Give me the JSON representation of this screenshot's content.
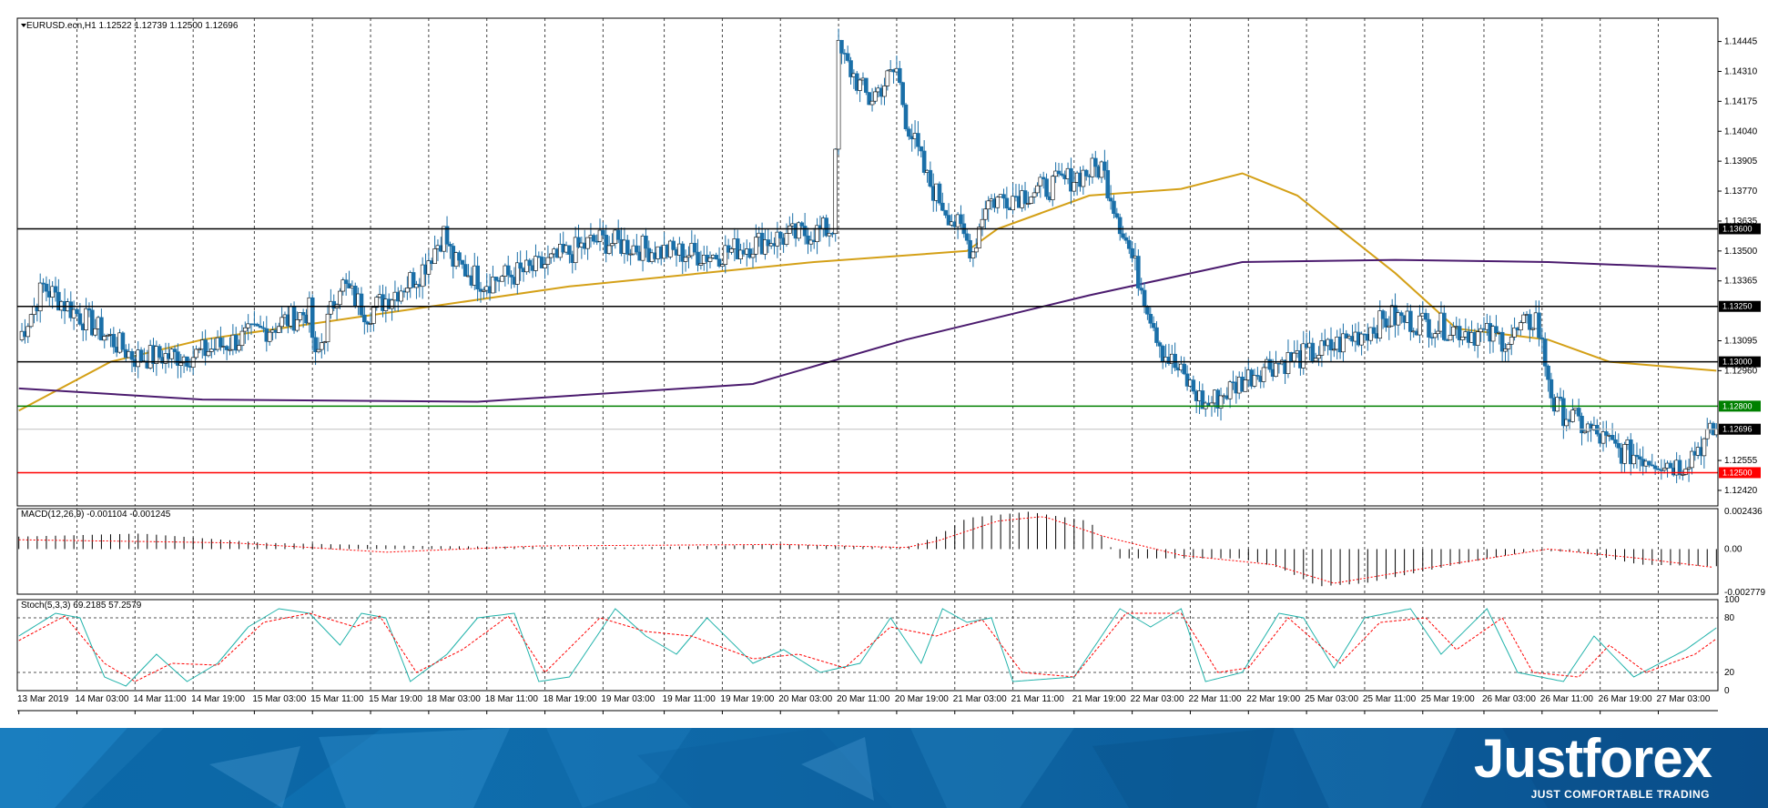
{
  "header": {
    "symbol_line": "EURUSD.ecn,H1  1.12522 1.12739 1.12500 1.12696"
  },
  "chart_data": [
    {
      "type": "candlestick",
      "title": "EURUSD.ecn,H1  1.12522 1.12739 1.12500 1.12696",
      "timeframe": "H1",
      "ylim": [
        1.1235,
        1.1455
      ],
      "y_ticks": [
        "1.14445",
        "1.14310",
        "1.14175",
        "1.14040",
        "1.13905",
        "1.13770",
        "1.13635",
        "1.13500",
        "1.13365",
        "1.13095",
        "1.12960",
        "1.12555",
        "1.12420"
      ],
      "x_tick_labels": [
        "13 Mar 2019",
        "14 Mar 03:00",
        "14 Mar 11:00",
        "14 Mar 19:00",
        "15 Mar 03:00",
        "15 Mar 11:00",
        "15 Mar 19:00",
        "18 Mar 03:00",
        "18 Mar 11:00",
        "18 Mar 19:00",
        "19 Mar 03:00",
        "19 Mar 11:00",
        "19 Mar 19:00",
        "20 Mar 03:00",
        "20 Mar 11:00",
        "20 Mar 19:00",
        "21 Mar 03:00",
        "21 Mar 11:00",
        "21 Mar 19:00",
        "22 Mar 03:00",
        "22 Mar 11:00",
        "22 Mar 19:00",
        "25 Mar 03:00",
        "25 Mar 11:00",
        "25 Mar 19:00",
        "26 Mar 03:00",
        "26 Mar 11:00",
        "26 Mar 19:00",
        "27 Mar 03:00"
      ],
      "key_points": [
        {
          "t": "13 Mar 2019",
          "close": 1.131
        },
        {
          "t": "13 Mar 21:00",
          "close": 1.1334
        },
        {
          "t": "14 Mar 03:00",
          "close": 1.1325
        },
        {
          "t": "14 Mar 11:00",
          "close": 1.1302
        },
        {
          "t": "14 Mar 19:00",
          "close": 1.1303
        },
        {
          "t": "15 Mar 03:00",
          "close": 1.1312
        },
        {
          "t": "15 Mar 11:00",
          "close": 1.1323
        },
        {
          "t": "15 Mar 13:00",
          "close": 1.13
        },
        {
          "t": "15 Mar 16:00",
          "close": 1.1336
        },
        {
          "t": "15 Mar 19:00",
          "close": 1.1322
        },
        {
          "t": "18 Mar 03:00",
          "close": 1.134
        },
        {
          "t": "18 Mar 09:00",
          "close": 1.1358
        },
        {
          "t": "18 Mar 11:00",
          "close": 1.1345
        },
        {
          "t": "18 Mar 19:00",
          "close": 1.1336
        },
        {
          "t": "19 Mar 03:00",
          "close": 1.1342
        },
        {
          "t": "19 Mar 11:00",
          "close": 1.1355
        },
        {
          "t": "19 Mar 19:00",
          "close": 1.135
        },
        {
          "t": "20 Mar 03:00",
          "close": 1.1348
        },
        {
          "t": "20 Mar 11:00",
          "close": 1.1355
        },
        {
          "t": "20 Mar 18:00",
          "close": 1.136
        },
        {
          "t": "20 Mar 19:00",
          "close": 1.144
        },
        {
          "t": "20 Mar 21:00",
          "close": 1.1418
        },
        {
          "t": "21 Mar 03:00",
          "close": 1.1432
        },
        {
          "t": "21 Mar 07:00",
          "close": 1.141
        },
        {
          "t": "21 Mar 11:00",
          "close": 1.1382
        },
        {
          "t": "21 Mar 14:00",
          "close": 1.135
        },
        {
          "t": "21 Mar 19:00",
          "close": 1.1372
        },
        {
          "t": "22 Mar 03:00",
          "close": 1.1378
        },
        {
          "t": "22 Mar 05:00",
          "close": 1.1388
        },
        {
          "t": "22 Mar 06:00",
          "close": 1.1305
        },
        {
          "t": "22 Mar 11:00",
          "close": 1.128
        },
        {
          "t": "22 Mar 19:00",
          "close": 1.1298
        },
        {
          "t": "25 Mar 03:00",
          "close": 1.1305
        },
        {
          "t": "25 Mar 11:00",
          "close": 1.132
        },
        {
          "t": "25 Mar 19:00",
          "close": 1.1315
        },
        {
          "t": "26 Mar 03:00",
          "close": 1.131
        },
        {
          "t": "26 Mar 08:00",
          "close": 1.132
        },
        {
          "t": "26 Mar 11:00",
          "close": 1.128
        },
        {
          "t": "26 Mar 19:00",
          "close": 1.126
        },
        {
          "t": "27 Mar 03:00",
          "close": 1.1253
        },
        {
          "t": "27 Mar 06:00",
          "close": 1.12696
        }
      ],
      "horizontal_levels": [
        {
          "price": 1.136,
          "label": "1.13600",
          "color": "#000000"
        },
        {
          "price": 1.1325,
          "label": "1.13250",
          "color": "#000000"
        },
        {
          "price": 1.13,
          "label": "1.13000",
          "color": "#000000"
        },
        {
          "price": 1.128,
          "label": "1.12800",
          "color": "#008000"
        },
        {
          "price": 1.125,
          "label": "1.12500",
          "color": "#ff0000"
        }
      ],
      "current_price": {
        "price": 1.12696,
        "label": "1.12696"
      },
      "moving_averages": [
        {
          "color": "#d4a017",
          "points": [
            [
              0,
              1.1278
            ],
            [
              30,
              1.13
            ],
            [
              60,
              1.131
            ],
            [
              120,
              1.1322
            ],
            [
              180,
              1.1334
            ],
            [
              260,
              1.1345
            ],
            [
              310,
              1.135
            ],
            [
              320,
              1.136
            ],
            [
              350,
              1.1375
            ],
            [
              380,
              1.1378
            ],
            [
              400,
              1.1385
            ],
            [
              418,
              1.1375
            ],
            [
              450,
              1.134
            ],
            [
              470,
              1.1315
            ],
            [
              500,
              1.131
            ],
            [
              520,
              1.13
            ],
            [
              555,
              1.1296
            ]
          ]
        },
        {
          "color": "#4b1b6e",
          "points": [
            [
              0,
              1.1288
            ],
            [
              60,
              1.1283
            ],
            [
              150,
              1.1282
            ],
            [
              240,
              1.129
            ],
            [
              290,
              1.131
            ],
            [
              350,
              1.133
            ],
            [
              400,
              1.1345
            ],
            [
              450,
              1.1346
            ],
            [
              500,
              1.1345
            ],
            [
              555,
              1.1342
            ]
          ]
        }
      ],
      "colors": {
        "bull": "#ffffff",
        "bear": "#1a6fa8",
        "wick": "#1a6fa8"
      }
    },
    {
      "type": "bar",
      "title": "MACD(12,26,9) -0.001104 -0.001245",
      "ylim": [
        -0.0029,
        0.0026
      ],
      "y_ticks": [
        "0.002436",
        "0.00",
        "-0.002779"
      ],
      "histogram_keypoints": [
        [
          0,
          0.0008
        ],
        [
          40,
          0.001
        ],
        [
          80,
          0.0004
        ],
        [
          130,
          0.0002
        ],
        [
          200,
          0.0001
        ],
        [
          250,
          0.0003
        ],
        [
          290,
          0.0001
        ],
        [
          300,
          0.0008
        ],
        [
          310,
          0.002
        ],
        [
          330,
          0.0024
        ],
        [
          350,
          0.0018
        ],
        [
          360,
          -0.0006
        ],
        [
          400,
          -0.0006
        ],
        [
          412,
          -0.0012
        ],
        [
          425,
          -0.0024
        ],
        [
          440,
          -0.0022
        ],
        [
          470,
          -0.001
        ],
        [
          495,
          -0.0001
        ],
        [
          510,
          -0.0002
        ],
        [
          530,
          -0.001
        ],
        [
          555,
          -0.0011
        ]
      ],
      "signal_keypoints": [
        [
          0,
          0.0006
        ],
        [
          70,
          0.0004
        ],
        [
          120,
          -0.0002
        ],
        [
          170,
          0.0002
        ],
        [
          250,
          0.0003
        ],
        [
          290,
          0.0001
        ],
        [
          300,
          0.0005
        ],
        [
          320,
          0.0018
        ],
        [
          335,
          0.0021
        ],
        [
          355,
          0.0008
        ],
        [
          380,
          -0.0004
        ],
        [
          410,
          -0.001
        ],
        [
          430,
          -0.0022
        ],
        [
          470,
          -0.0009
        ],
        [
          500,
          0.0
        ],
        [
          530,
          -0.0006
        ],
        [
          555,
          -0.0012
        ]
      ]
    },
    {
      "type": "line",
      "title": "Stoch(5,3,3) 69.2185 57.2579",
      "ylim": [
        0,
        100
      ],
      "y_ticks": [
        "100",
        "80",
        "20",
        "0"
      ],
      "k_keypoints": [
        [
          0,
          60
        ],
        [
          12,
          85
        ],
        [
          20,
          80
        ],
        [
          28,
          15
        ],
        [
          35,
          5
        ],
        [
          45,
          40
        ],
        [
          55,
          10
        ],
        [
          65,
          30
        ],
        [
          75,
          70
        ],
        [
          85,
          90
        ],
        [
          95,
          85
        ],
        [
          105,
          50
        ],
        [
          112,
          85
        ],
        [
          120,
          80
        ],
        [
          128,
          10
        ],
        [
          140,
          40
        ],
        [
          150,
          80
        ],
        [
          162,
          85
        ],
        [
          170,
          10
        ],
        [
          180,
          15
        ],
        [
          195,
          90
        ],
        [
          205,
          60
        ],
        [
          215,
          40
        ],
        [
          225,
          80
        ],
        [
          240,
          30
        ],
        [
          250,
          45
        ],
        [
          262,
          20
        ],
        [
          275,
          30
        ],
        [
          285,
          80
        ],
        [
          295,
          30
        ],
        [
          302,
          90
        ],
        [
          310,
          75
        ],
        [
          318,
          80
        ],
        [
          325,
          10
        ],
        [
          345,
          15
        ],
        [
          360,
          90
        ],
        [
          370,
          70
        ],
        [
          380,
          90
        ],
        [
          388,
          10
        ],
        [
          400,
          20
        ],
        [
          412,
          85
        ],
        [
          420,
          80
        ],
        [
          430,
          25
        ],
        [
          440,
          80
        ],
        [
          455,
          90
        ],
        [
          465,
          40
        ],
        [
          480,
          90
        ],
        [
          490,
          20
        ],
        [
          505,
          10
        ],
        [
          515,
          60
        ],
        [
          528,
          15
        ],
        [
          545,
          45
        ],
        [
          555,
          69
        ]
      ],
      "d_keypoints": [
        [
          0,
          55
        ],
        [
          15,
          82
        ],
        [
          28,
          30
        ],
        [
          38,
          10
        ],
        [
          50,
          30
        ],
        [
          65,
          28
        ],
        [
          80,
          75
        ],
        [
          95,
          85
        ],
        [
          110,
          70
        ],
        [
          118,
          82
        ],
        [
          130,
          20
        ],
        [
          145,
          45
        ],
        [
          160,
          82
        ],
        [
          172,
          20
        ],
        [
          190,
          80
        ],
        [
          205,
          65
        ],
        [
          220,
          60
        ],
        [
          240,
          35
        ],
        [
          255,
          40
        ],
        [
          270,
          25
        ],
        [
          285,
          70
        ],
        [
          300,
          60
        ],
        [
          315,
          78
        ],
        [
          328,
          20
        ],
        [
          345,
          15
        ],
        [
          362,
          85
        ],
        [
          380,
          85
        ],
        [
          392,
          20
        ],
        [
          402,
          25
        ],
        [
          415,
          80
        ],
        [
          432,
          30
        ],
        [
          445,
          75
        ],
        [
          460,
          80
        ],
        [
          470,
          45
        ],
        [
          485,
          80
        ],
        [
          495,
          20
        ],
        [
          510,
          15
        ],
        [
          520,
          50
        ],
        [
          532,
          20
        ],
        [
          548,
          40
        ],
        [
          555,
          57
        ]
      ],
      "levels": [
        80,
        20
      ]
    }
  ],
  "branding": {
    "name": "Justforex",
    "tagline": "JUST COMFORTABLE TRADING"
  }
}
